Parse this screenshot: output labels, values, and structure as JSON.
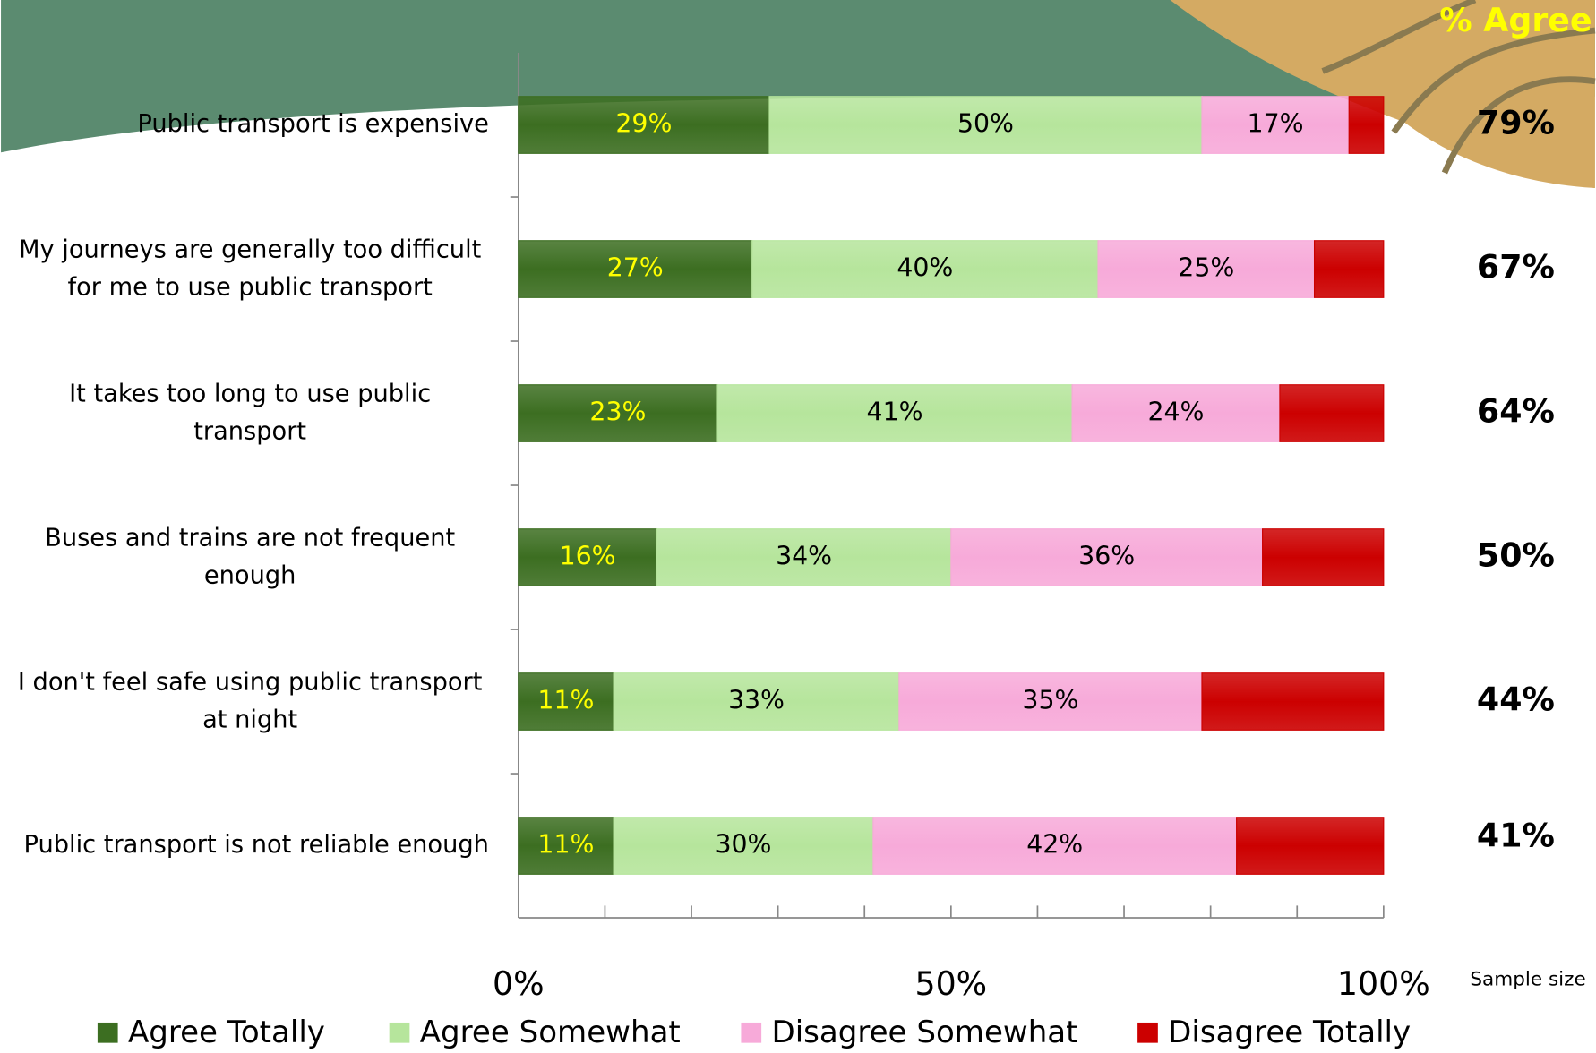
{
  "chart_data": {
    "type": "stacked_bar_horizontal",
    "categories": [
      "Public transport is expensive",
      "My journeys are generally too difficult for me to use public transport",
      "It takes too long to use public transport",
      "Buses and trains are not frequent enough",
      "I don't feel safe using public transport at night",
      "Public transport is not reliable enough"
    ],
    "series": [
      {
        "name": "Agree Totally",
        "color": "#3c6e21",
        "label_color": "#ffff00",
        "values": [
          29,
          27,
          23,
          16,
          11,
          11
        ],
        "value_labels": [
          "29%",
          "27%",
          "23%",
          "16%",
          "11%",
          "11%"
        ]
      },
      {
        "name": "Agree Somewhat",
        "color": "#b6e59c",
        "label_color": "#000000",
        "values": [
          50,
          40,
          41,
          34,
          33,
          30
        ],
        "value_labels": [
          "50%",
          "40%",
          "41%",
          "34%",
          "33%",
          "30%"
        ]
      },
      {
        "name": "Disagree Somewhat",
        "color": "#f7aad9",
        "label_color": "#000000",
        "values": [
          17,
          25,
          24,
          36,
          35,
          42
        ],
        "value_labels": [
          "17%",
          "25%",
          "24%",
          "36%",
          "35%",
          "42%"
        ]
      },
      {
        "name": "Disagree Totally",
        "color": "#cc0000",
        "values": [
          4,
          8,
          12,
          14,
          21,
          17
        ]
      }
    ],
    "xlim": [
      0,
      100
    ],
    "xticks": [
      {
        "value": 0,
        "label": "0%"
      },
      {
        "value": 50,
        "label": "50%"
      },
      {
        "value": 100,
        "label": "100%"
      }
    ],
    "xticks_minor": [
      0,
      10,
      20,
      30,
      40,
      50,
      60,
      70,
      80,
      90,
      100
    ],
    "side_column": {
      "title": "% Agree",
      "values": [
        79,
        67,
        64,
        50,
        44,
        41
      ],
      "value_labels": [
        "79%",
        "67%",
        "64%",
        "50%",
        "44%",
        "41%"
      ]
    },
    "note": "Sample size",
    "legend": "bottom"
  }
}
